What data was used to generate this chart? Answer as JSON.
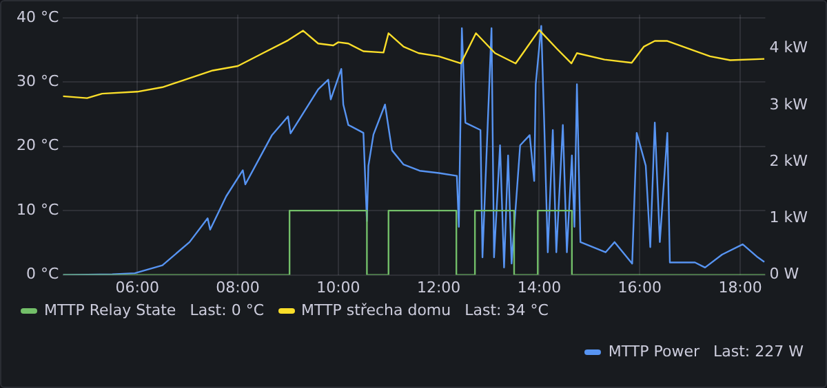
{
  "chart_data": {
    "type": "line",
    "xlim": [
      4.52,
      18.5
    ],
    "xticks": [
      {
        "value": 6,
        "label": "06:00"
      },
      {
        "value": 8,
        "label": "08:00"
      },
      {
        "value": 10,
        "label": "10:00"
      },
      {
        "value": 12,
        "label": "12:00"
      },
      {
        "value": 14,
        "label": "14:00"
      },
      {
        "value": 16,
        "label": "16:00"
      },
      {
        "value": 18,
        "label": "18:00"
      }
    ],
    "ylim": [
      0,
      40.5
    ],
    "yticks": [
      {
        "value": 0,
        "label": "0 °C"
      },
      {
        "value": 10,
        "label": "10 °C"
      },
      {
        "value": 20,
        "label": "20 °C"
      },
      {
        "value": 30,
        "label": "30 °C"
      },
      {
        "value": 40,
        "label": "40 °C"
      }
    ],
    "y2lim": [
      0,
      4.6
    ],
    "y2ticks": [
      {
        "value": 0,
        "label": "0 W"
      },
      {
        "value": 1,
        "label": "1 kW"
      },
      {
        "value": 2,
        "label": "2 kW"
      },
      {
        "value": 3,
        "label": "3 kW"
      },
      {
        "value": 4,
        "label": "4 kW"
      }
    ],
    "grid": true,
    "legend": "bottom",
    "marker": "none",
    "line_style": "solid",
    "annotations": [
      "Last: 0 °C",
      "Last: 34 °C",
      "Last: 227 W"
    ],
    "series": [
      {
        "name": "MTTP Relay State",
        "type": "step",
        "color": "#73bf69",
        "x": [
          4.52,
          9.03,
          10.57,
          11.0,
          12.35,
          12.72,
          13.5,
          13.97,
          14.65,
          18.5
        ],
        "values": [
          0,
          10,
          0,
          10,
          0,
          10,
          0,
          10,
          0,
          0
        ]
      },
      {
        "name": "MTTP střecha domu",
        "color": "#fade2a",
        "x": [
          4.52,
          5.0,
          5.3,
          6.0,
          6.5,
          7.0,
          7.5,
          8.0,
          8.5,
          9.0,
          9.3,
          9.6,
          9.9,
          10.0,
          10.2,
          10.5,
          10.9,
          11.0,
          11.3,
          11.6,
          12.0,
          12.44,
          12.74,
          13.12,
          13.53,
          14.0,
          14.35,
          14.64,
          14.75,
          15.3,
          15.84,
          16.08,
          16.3,
          16.55,
          17.4,
          17.8,
          18.48
        ],
        "values": [
          27.8,
          27.5,
          28.2,
          28.5,
          29.2,
          30.5,
          31.8,
          32.5,
          34.5,
          36.5,
          38,
          36,
          35.7,
          36.2,
          36,
          34.8,
          34.6,
          37.6,
          35.5,
          34.5,
          34,
          32.9,
          37.6,
          34.5,
          32.9,
          38.1,
          35.2,
          32.9,
          34.5,
          33.5,
          33,
          35.5,
          36.4,
          36.4,
          34,
          33.4,
          33.6
        ]
      },
      {
        "name": "MTTP Power",
        "color": "#5794f2",
        "axis": "y2",
        "x": [
          4.52,
          5.5,
          5.95,
          6.5,
          7.04,
          7.4,
          7.45,
          7.77,
          8.1,
          8.15,
          8.68,
          9.0,
          9.05,
          9.6,
          9.8,
          9.85,
          10.06,
          10.1,
          10.2,
          10.5,
          10.57,
          10.6,
          10.7,
          10.93,
          11.07,
          11.3,
          11.62,
          12.0,
          12.36,
          12.4,
          12.46,
          12.53,
          12.83,
          12.87,
          13.05,
          13.1,
          13.22,
          13.3,
          13.38,
          13.45,
          13.62,
          13.81,
          13.9,
          13.93,
          14.04,
          14.1,
          14.17,
          14.27,
          14.34,
          14.47,
          14.55,
          14.65,
          14.7,
          14.75,
          14.82,
          15.32,
          15.5,
          15.85,
          15.94,
          16.12,
          16.21,
          16.3,
          16.4,
          16.55,
          16.6,
          17.1,
          17.3,
          17.64,
          18.05,
          18.35,
          18.48
        ],
        "values": [
          0,
          0.01,
          0.03,
          0.17,
          0.58,
          1.0,
          0.8,
          1.39,
          1.85,
          1.6,
          2.47,
          2.8,
          2.5,
          3.28,
          3.45,
          3.1,
          3.64,
          3.01,
          2.65,
          2.51,
          0.95,
          1.93,
          2.48,
          3.01,
          2.2,
          1.95,
          1.84,
          1.8,
          1.75,
          0.85,
          4.36,
          2.69,
          2.56,
          0.31,
          4.36,
          0.31,
          2.29,
          0.13,
          2.11,
          0.2,
          2.29,
          2.47,
          1.66,
          3.37,
          4.4,
          2.65,
          0.4,
          2.56,
          0.4,
          2.65,
          0.4,
          2.11,
          0.85,
          3.37,
          0.58,
          0.4,
          0.58,
          0.2,
          2.51,
          1.93,
          0.49,
          2.69,
          0.58,
          2.51,
          0.22,
          0.22,
          0.13,
          0.36,
          0.54,
          0.31,
          0.23
        ]
      }
    ]
  }
}
